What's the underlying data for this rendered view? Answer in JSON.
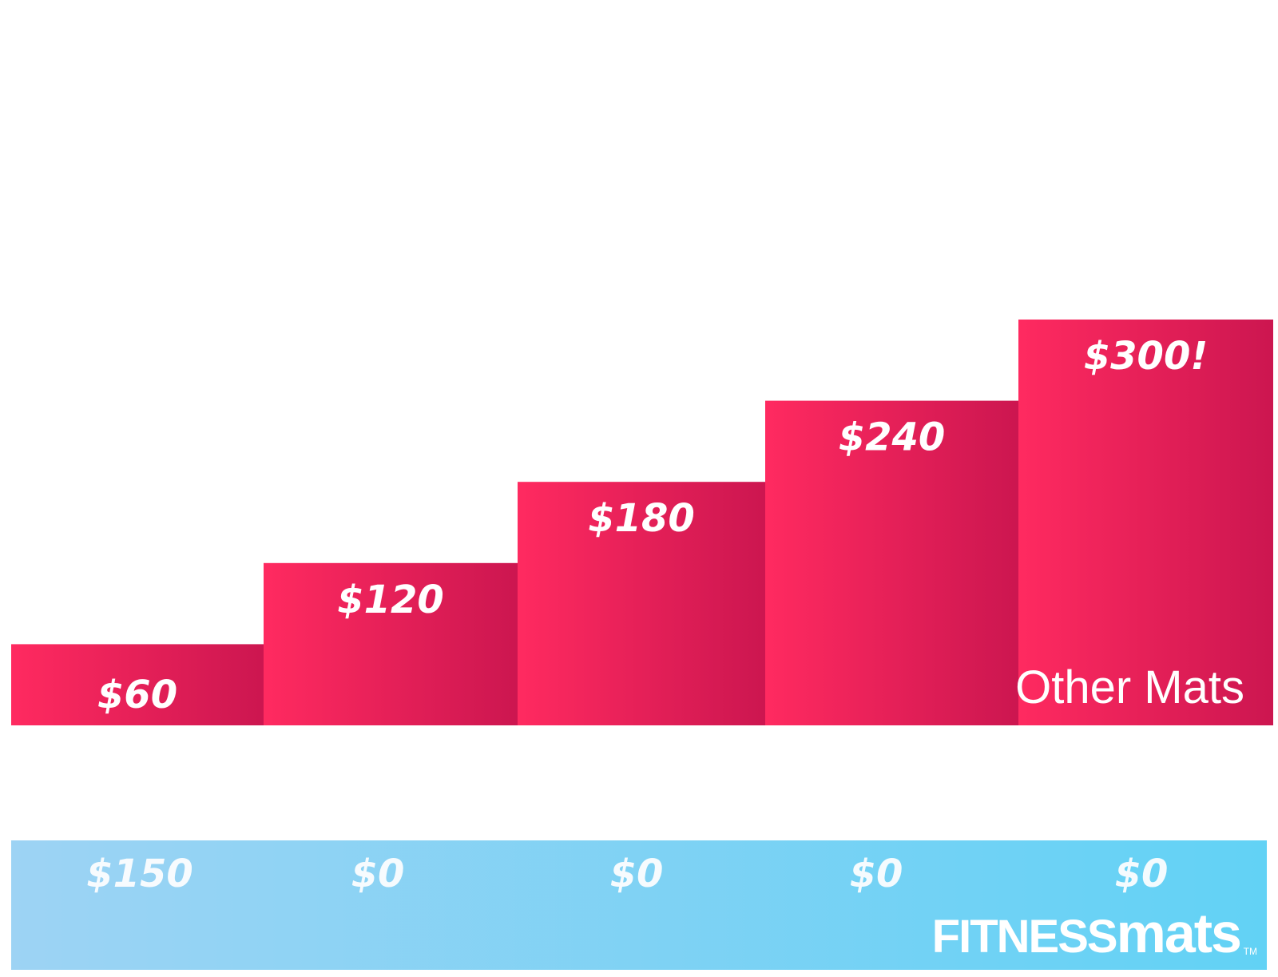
{
  "colors": {
    "other_mats_start": "#ff2a60",
    "other_mats_end": "#cc1650",
    "fitness_mats_start": "#9dd3f4",
    "fitness_mats_end": "#62d2f5"
  },
  "chart_data": {
    "type": "bar",
    "grid": false,
    "ylim": [
      0,
      300
    ],
    "series": [
      {
        "name": "Other Mats",
        "values": [
          60,
          120,
          180,
          240,
          300
        ],
        "labels": [
          "$60",
          "$120",
          "$180",
          "$240",
          "$300!"
        ]
      },
      {
        "name": "FITNESSmats",
        "values": [
          150,
          0,
          0,
          0,
          0
        ],
        "labels": [
          "$150",
          "$0",
          "$0",
          "$0",
          "$0"
        ]
      }
    ]
  },
  "brand": {
    "bold": "FITNESS",
    "light": "mats",
    "tm": "TM"
  }
}
